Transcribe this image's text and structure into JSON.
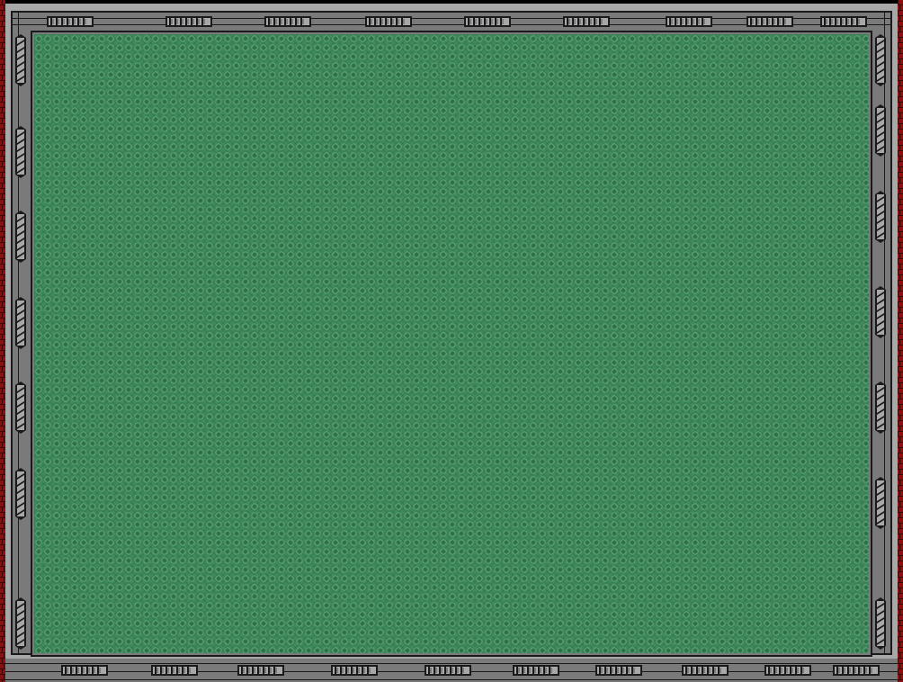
{
  "colors": {
    "frame_light": "#a8a8a8",
    "frame_mid": "#7a7a7a",
    "frame_dark": "#1a1a1a",
    "felt_base": "#3f8a5c",
    "felt_dark": "#2f6e48",
    "felt_light": "#6fae84",
    "brick_red": "#8a1010",
    "brick_mortar": "#3a0606"
  },
  "icons": {
    "top_decorations": "metal-bracket-icon",
    "bottom_decorations": "metal-bracket-icon",
    "side_decorations": "metal-clamp-icon",
    "side_edge": "brick-edge-icon"
  }
}
